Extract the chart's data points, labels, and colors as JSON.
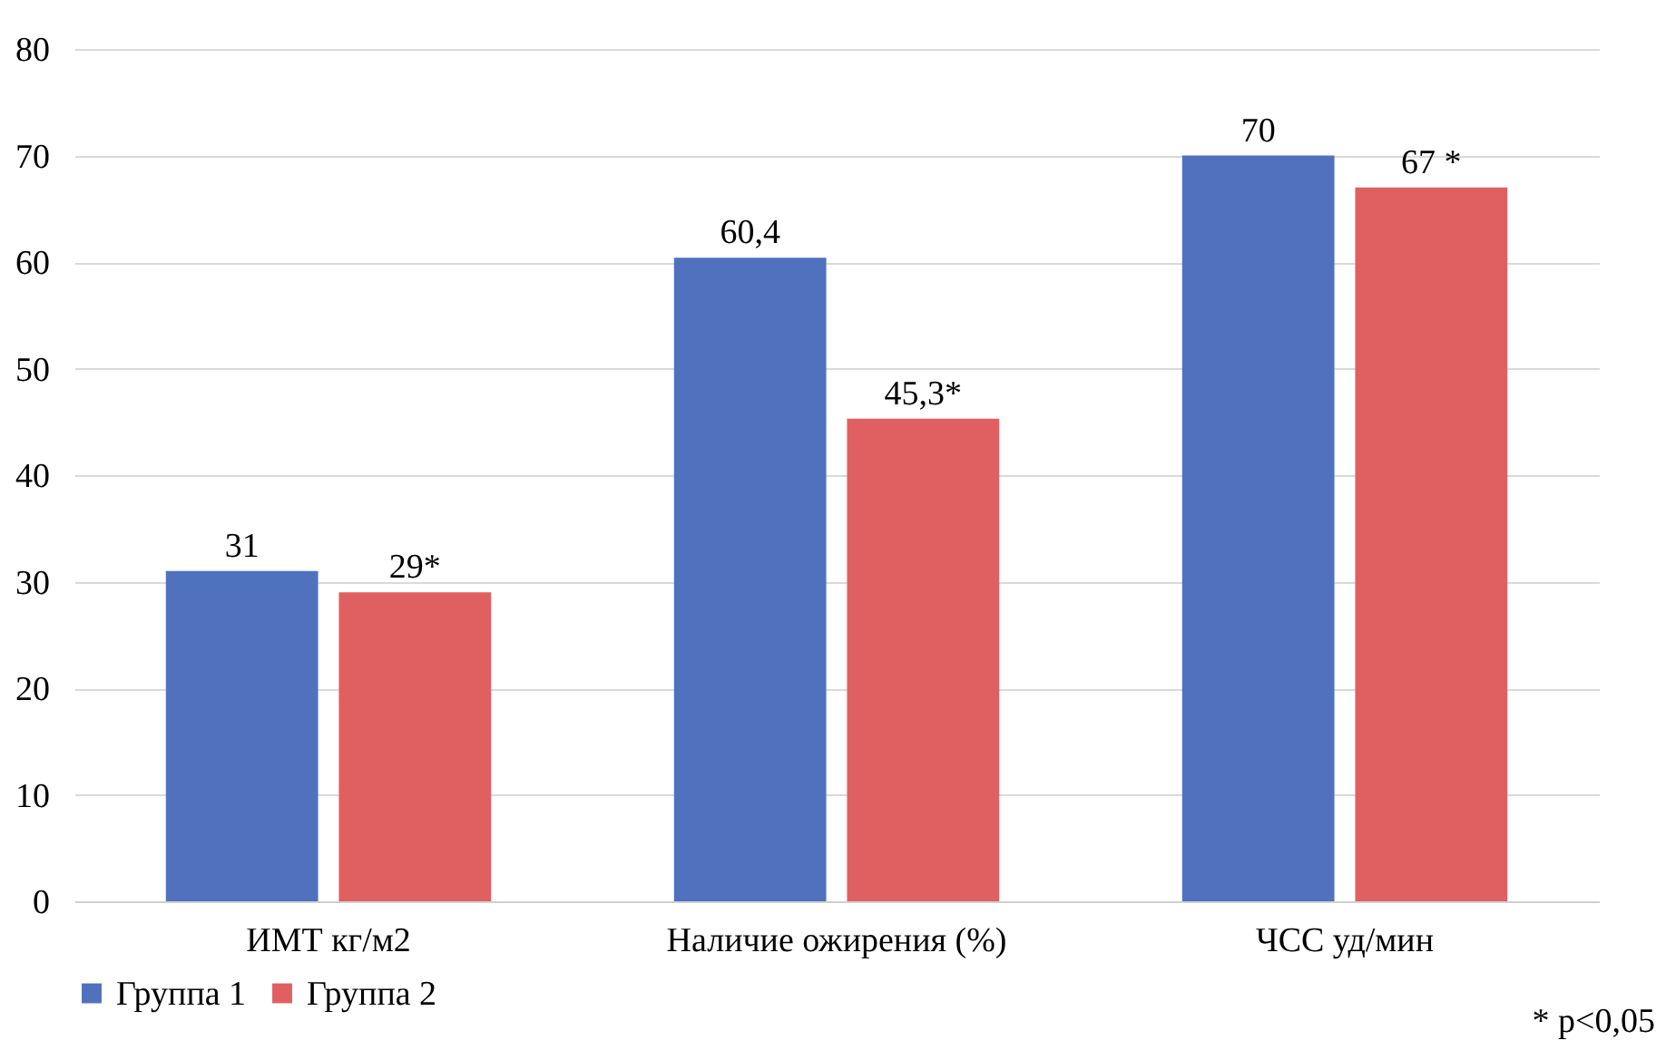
{
  "chart_data": {
    "type": "bar",
    "categories": [
      "ИМТ кг/м2",
      "Наличие ожирения (%)",
      "ЧСС уд/мин"
    ],
    "series": [
      {
        "name": "Группа 1",
        "color": "#4f71be",
        "values": [
          31,
          60.4,
          70
        ],
        "value_labels": [
          "31",
          "60,4",
          "70"
        ]
      },
      {
        "name": "Группа 2",
        "color": "#e06062",
        "values": [
          29,
          45.3,
          67
        ],
        "value_labels": [
          "29*",
          "45,3*",
          "67 *"
        ]
      }
    ],
    "ylim": [
      0,
      80
    ],
    "yticks": [
      0,
      10,
      20,
      30,
      40,
      50,
      60,
      70,
      80
    ],
    "grid": "y",
    "legend": "bottom",
    "annotations": [
      "* p<0,05"
    ]
  }
}
